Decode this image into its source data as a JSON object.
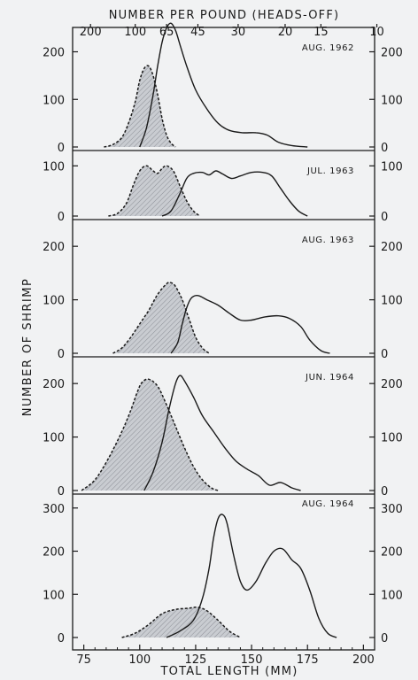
{
  "colors": {
    "background": "#f1f2f3",
    "ink": "#1a1a1a",
    "shade": "#c9ccd1"
  },
  "chart_data": {
    "type": "area",
    "top_axis_label": "NUMBER PER POUND (HEADS-OFF)",
    "top_ticks": [
      {
        "label": "200",
        "length_mm": 78
      },
      {
        "label": "100",
        "length_mm": 98
      },
      {
        "label": "65",
        "length_mm": 112
      },
      {
        "label": "45",
        "length_mm": 126
      },
      {
        "label": "30",
        "length_mm": 144
      },
      {
        "label": "20",
        "length_mm": 165
      },
      {
        "label": "15",
        "length_mm": 181
      },
      {
        "label": "10",
        "length_mm": 206
      }
    ],
    "xlabel": "TOTAL LENGTH (MM)",
    "ylabel": "NUMBER OF SHRIMP",
    "x_ticks": [
      "75",
      "100",
      "125",
      "150",
      "175",
      "200"
    ],
    "xlim": [
      70,
      205
    ],
    "panels": [
      {
        "label": "AUG. 1962",
        "ylim": [
          0,
          240
        ],
        "yticks": [
          "0",
          "100",
          "200"
        ],
        "series": [
          {
            "shaded": true,
            "points": [
              [
                84,
                0
              ],
              [
                88,
                5
              ],
              [
                92,
                20
              ],
              [
                95,
                50
              ],
              [
                98,
                95
              ],
              [
                100,
                140
              ],
              [
                102,
                165
              ],
              [
                104,
                170
              ],
              [
                106,
                150
              ],
              [
                108,
                110
              ],
              [
                110,
                60
              ],
              [
                112,
                25
              ],
              [
                114,
                8
              ],
              [
                116,
                0
              ]
            ]
          },
          {
            "shaded": false,
            "points": [
              [
                100,
                0
              ],
              [
                103,
                40
              ],
              [
                106,
                110
              ],
              [
                108,
                170
              ],
              [
                110,
                220
              ],
              [
                112,
                250
              ],
              [
                114,
                260
              ],
              [
                116,
                245
              ],
              [
                118,
                215
              ],
              [
                121,
                170
              ],
              [
                125,
                120
              ],
              [
                130,
                80
              ],
              [
                135,
                50
              ],
              [
                140,
                35
              ],
              [
                146,
                30
              ],
              [
                152,
                30
              ],
              [
                157,
                25
              ],
              [
                162,
                10
              ],
              [
                168,
                3
              ],
              [
                175,
                0
              ]
            ]
          }
        ]
      },
      {
        "label": "JUL. 1963",
        "ylim": [
          0,
          120
        ],
        "yticks": [
          "0",
          "100"
        ],
        "series": [
          {
            "shaded": true,
            "points": [
              [
                86,
                0
              ],
              [
                90,
                5
              ],
              [
                94,
                25
              ],
              [
                97,
                60
              ],
              [
                100,
                90
              ],
              [
                103,
                100
              ],
              [
                106,
                90
              ],
              [
                108,
                85
              ],
              [
                110,
                95
              ],
              [
                112,
                100
              ],
              [
                115,
                90
              ],
              [
                118,
                60
              ],
              [
                121,
                30
              ],
              [
                124,
                10
              ],
              [
                127,
                0
              ]
            ]
          },
          {
            "shaded": false,
            "points": [
              [
                110,
                0
              ],
              [
                114,
                10
              ],
              [
                118,
                45
              ],
              [
                121,
                75
              ],
              [
                124,
                85
              ],
              [
                128,
                87
              ],
              [
                131,
                82
              ],
              [
                134,
                90
              ],
              [
                137,
                84
              ],
              [
                141,
                75
              ],
              [
                145,
                80
              ],
              [
                150,
                87
              ],
              [
                155,
                87
              ],
              [
                159,
                80
              ],
              [
                163,
                55
              ],
              [
                167,
                30
              ],
              [
                171,
                10
              ],
              [
                175,
                0
              ]
            ]
          }
        ]
      },
      {
        "label": "AUG. 1963",
        "ylim": [
          0,
          240
        ],
        "yticks": [
          "0",
          "100",
          "200"
        ],
        "series": [
          {
            "shaded": true,
            "points": [
              [
                88,
                0
              ],
              [
                92,
                10
              ],
              [
                96,
                30
              ],
              [
                100,
                55
              ],
              [
                104,
                80
              ],
              [
                108,
                110
              ],
              [
                112,
                130
              ],
              [
                114,
                132
              ],
              [
                116,
                125
              ],
              [
                119,
                100
              ],
              [
                122,
                65
              ],
              [
                125,
                30
              ],
              [
                128,
                10
              ],
              [
                131,
                0
              ]
            ]
          },
          {
            "shaded": false,
            "points": [
              [
                114,
                0
              ],
              [
                117,
                20
              ],
              [
                119,
                55
              ],
              [
                121,
                85
              ],
              [
                123,
                103
              ],
              [
                126,
                108
              ],
              [
                130,
                100
              ],
              [
                135,
                90
              ],
              [
                140,
                75
              ],
              [
                145,
                62
              ],
              [
                150,
                62
              ],
              [
                156,
                68
              ],
              [
                162,
                70
              ],
              [
                167,
                65
              ],
              [
                172,
                50
              ],
              [
                176,
                25
              ],
              [
                181,
                5
              ],
              [
                185,
                0
              ]
            ]
          }
        ]
      },
      {
        "label": "JUN. 1964",
        "ylim": [
          0,
          240
        ],
        "yticks": [
          "0",
          "100",
          "200"
        ],
        "series": [
          {
            "shaded": true,
            "points": [
              [
                74,
                0
              ],
              [
                80,
                20
              ],
              [
                86,
                60
              ],
              [
                92,
                110
              ],
              [
                96,
                150
              ],
              [
                99,
                185
              ],
              [
                101,
                202
              ],
              [
                104,
                208
              ],
              [
                108,
                195
              ],
              [
                112,
                160
              ],
              [
                116,
                120
              ],
              [
                120,
                80
              ],
              [
                124,
                45
              ],
              [
                128,
                20
              ],
              [
                132,
                5
              ],
              [
                135,
                0
              ]
            ]
          },
          {
            "shaded": false,
            "points": [
              [
                102,
                0
              ],
              [
                106,
                35
              ],
              [
                110,
                90
              ],
              [
                113,
                150
              ],
              [
                116,
                200
              ],
              [
                118,
                215
              ],
              [
                120,
                205
              ],
              [
                124,
                175
              ],
              [
                128,
                140
              ],
              [
                133,
                110
              ],
              [
                138,
                80
              ],
              [
                143,
                55
              ],
              [
                148,
                40
              ],
              [
                153,
                28
              ],
              [
                158,
                10
              ],
              [
                163,
                15
              ],
              [
                168,
                5
              ],
              [
                172,
                0
              ]
            ]
          }
        ]
      },
      {
        "label": "AUG. 1964",
        "ylim": [
          0,
          320
        ],
        "yticks": [
          "0",
          "100",
          "200",
          "300"
        ],
        "series": [
          {
            "shaded": true,
            "points": [
              [
                92,
                0
              ],
              [
                98,
                10
              ],
              [
                104,
                30
              ],
              [
                110,
                55
              ],
              [
                116,
                65
              ],
              [
                122,
                68
              ],
              [
                126,
                70
              ],
              [
                130,
                62
              ],
              [
                135,
                40
              ],
              [
                140,
                15
              ],
              [
                145,
                0
              ]
            ]
          },
          {
            "shaded": false,
            "points": [
              [
                112,
                0
              ],
              [
                118,
                15
              ],
              [
                124,
                40
              ],
              [
                128,
                90
              ],
              [
                131,
                160
              ],
              [
                133,
                230
              ],
              [
                135,
                275
              ],
              [
                137,
                285
              ],
              [
                139,
                265
              ],
              [
                142,
                190
              ],
              [
                145,
                130
              ],
              [
                148,
                110
              ],
              [
                152,
                130
              ],
              [
                156,
                170
              ],
              [
                160,
                200
              ],
              [
                164,
                205
              ],
              [
                168,
                180
              ],
              [
                172,
                160
              ],
              [
                176,
                110
              ],
              [
                180,
                45
              ],
              [
                184,
                10
              ],
              [
                188,
                0
              ]
            ]
          }
        ]
      }
    ]
  }
}
